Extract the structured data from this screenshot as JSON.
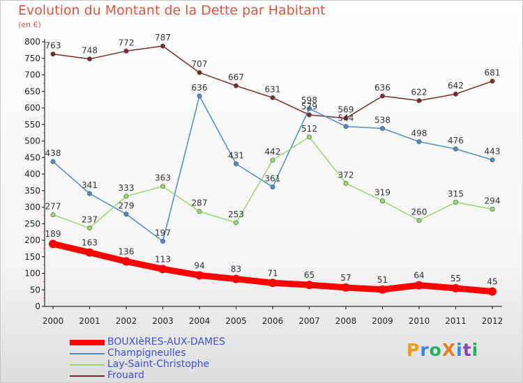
{
  "header": {
    "title": "Evolution du Montant de la Dette par Habitant",
    "subtitle": "(en €)"
  },
  "logo": {
    "text": "ProXiti",
    "letters": [
      "P",
      "r",
      "o",
      "X",
      "i",
      "t",
      "i"
    ],
    "colors": [
      "#f39c12",
      "#2e86de",
      "#27ae60",
      "#e67e22",
      "#2e86de",
      "#8e44ad",
      "#27ae60"
    ]
  },
  "chart_data": {
    "type": "line",
    "title": "Evolution du Montant de la Dette par Habitant",
    "ylabel": "(en €)",
    "xlabel": "",
    "x": [
      "2000",
      "2001",
      "2002",
      "2003",
      "2004",
      "2005",
      "2006",
      "2007",
      "2008",
      "2009",
      "2010",
      "2011",
      "2012"
    ],
    "ylim": [
      0,
      800
    ],
    "yticks": [
      0,
      50,
      100,
      150,
      200,
      250,
      300,
      350,
      400,
      450,
      500,
      550,
      600,
      650,
      700,
      750,
      800
    ],
    "grid": false,
    "legend_position": "bottom-left",
    "series": [
      {
        "name": "BOUXIèRES-AUX-DAMES",
        "color": "#ff0000",
        "values": [
          189,
          163,
          136,
          113,
          94,
          83,
          71,
          65,
          57,
          51,
          64,
          55,
          45
        ]
      },
      {
        "name": "Champigneulles",
        "color": "#4a8cc8",
        "values": [
          438,
          341,
          279,
          197,
          636,
          431,
          361,
          598,
          544,
          538,
          498,
          476,
          443
        ]
      },
      {
        "name": "Lay-Saint-Christophe",
        "color": "#98d86a",
        "values": [
          277,
          237,
          333,
          363,
          287,
          253,
          442,
          512,
          372,
          319,
          260,
          315,
          294
        ]
      },
      {
        "name": "Frouard",
        "color": "#7a2a2a",
        "values": [
          763,
          748,
          772,
          787,
          707,
          667,
          631,
          579,
          569,
          636,
          622,
          642,
          681
        ]
      }
    ]
  }
}
